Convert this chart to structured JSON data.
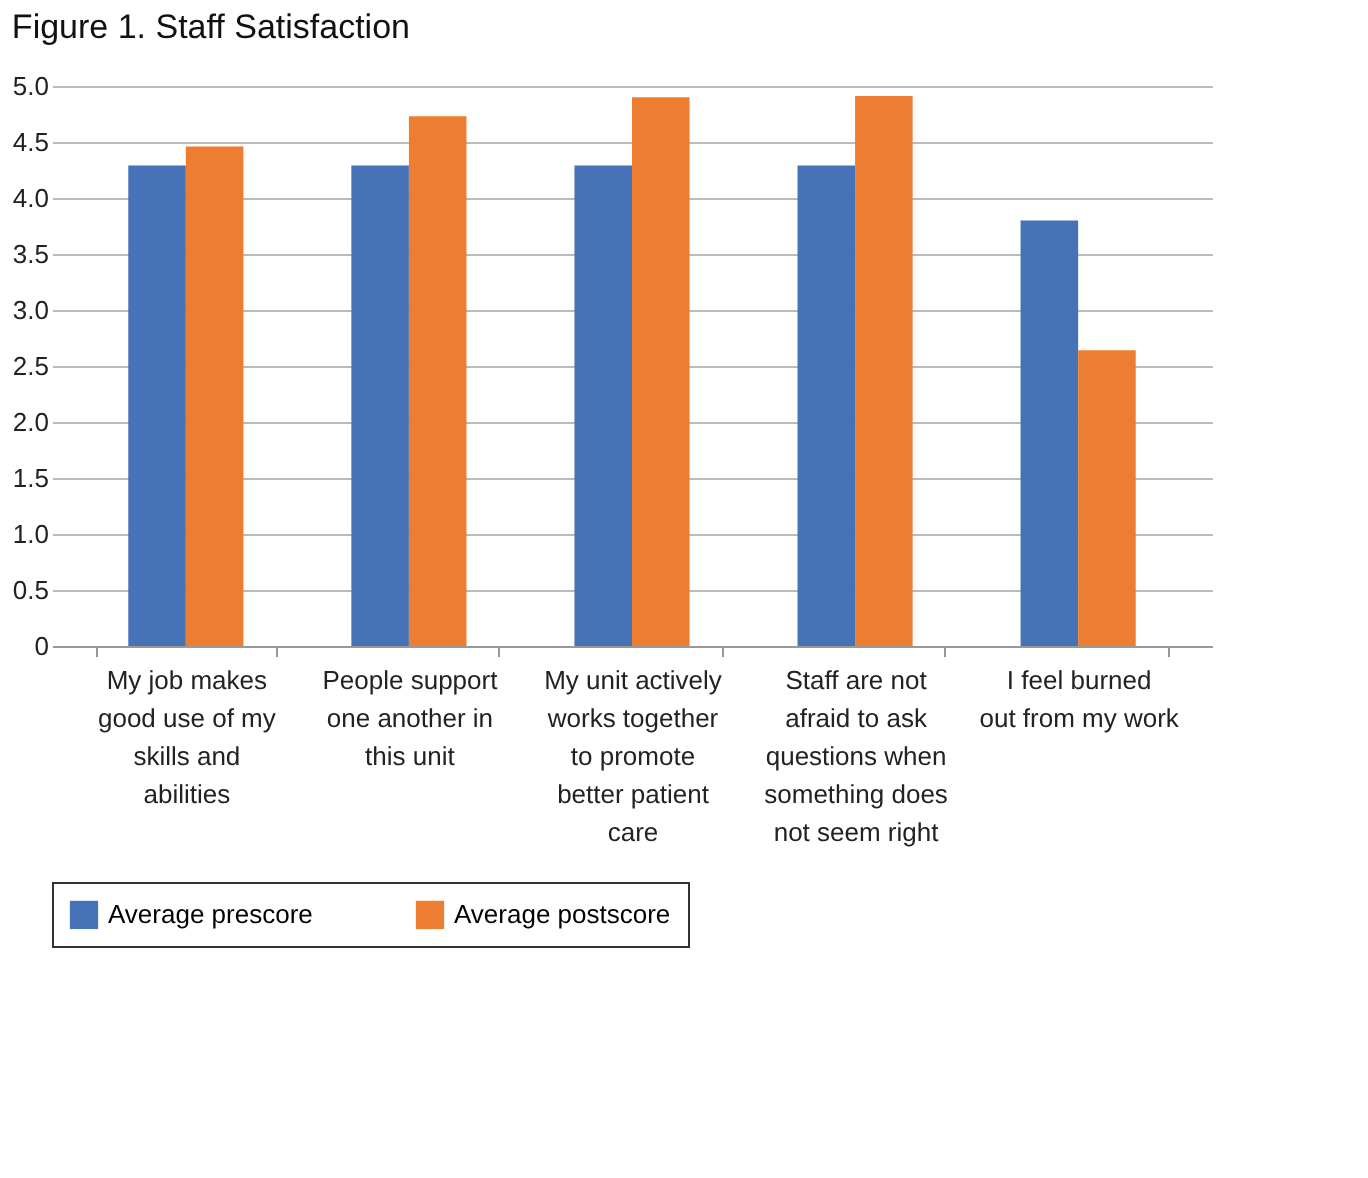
{
  "chart_data": {
    "type": "bar",
    "title": "Figure 1. Staff Satisfaction",
    "categories": [
      "My job makes good use of my skills and abilities",
      "People support one another in this unit",
      "My unit actively works together to promote better patient care",
      "Staff are not afraid to ask questions when something does not seem right",
      "I feel burned out from my work"
    ],
    "series": [
      {
        "name": "Average prescore",
        "color": "#4672b8",
        "values": [
          4.29,
          4.29,
          4.29,
          4.29,
          3.8
        ]
      },
      {
        "name": "Average postscore",
        "color": "#ed7d31",
        "values": [
          4.46,
          4.73,
          4.9,
          4.91,
          2.64
        ]
      }
    ],
    "ylim": [
      0,
      5
    ],
    "yticks": [
      0,
      {
        "value": 0.5,
        "label": "0.5"
      },
      {
        "value": 1,
        "label": "1.0"
      },
      {
        "value": 1.5,
        "label": "1.5"
      },
      {
        "value": 2,
        "label": "2.0"
      },
      {
        "value": 2.5,
        "label": "2.5"
      },
      {
        "value": 3,
        "label": "3.0"
      },
      {
        "value": 3.5,
        "label": "3.5"
      },
      {
        "value": 4,
        "label": "4.0"
      },
      {
        "value": 4.5,
        "label": "4.5"
      },
      {
        "value": 5,
        "label": "5.0"
      }
    ],
    "grid": "y",
    "legend": "bottom"
  }
}
